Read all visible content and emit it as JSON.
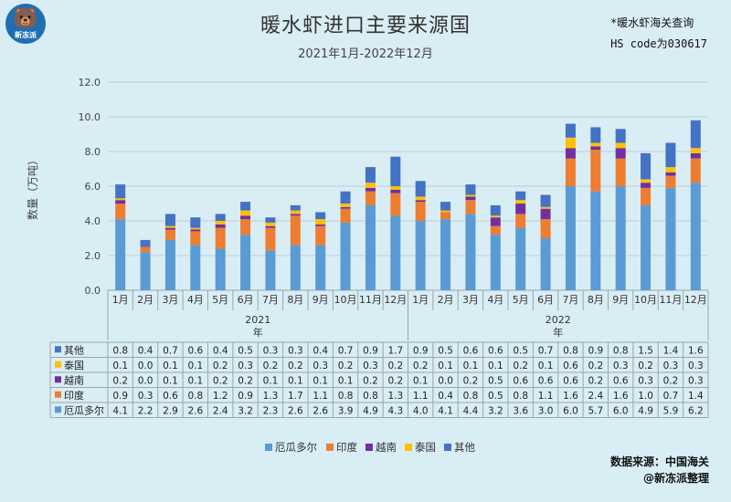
{
  "header": {
    "logo_text": "新冻派",
    "note_line1": "*暖水虾海关查询",
    "note_line2": "HS code为030617"
  },
  "footer": {
    "source": "数据来源：中国海关",
    "org": "@新冻派整理"
  },
  "colors": {
    "厄瓜多尔": "#5b9bd5",
    "印度": "#ed7d31",
    "越南": "#7030a0",
    "泰国": "#ffc000",
    "其他": "#4472c4"
  },
  "chart_data": {
    "type": "bar",
    "stacked": true,
    "title": "暖水虾进口主要来源国",
    "subtitle": "2021年1月-2022年12月",
    "ylabel": "数量（万吨）",
    "ylim": [
      0,
      12
    ],
    "yticks": [
      "0.0",
      "2.0",
      "4.0",
      "6.0",
      "8.0",
      "10.0",
      "12.0"
    ],
    "grid": true,
    "legend": "bottom",
    "groups": [
      {
        "label": "2021\n年",
        "months": [
          "1月",
          "2月",
          "3月",
          "4月",
          "5月",
          "6月",
          "7月",
          "8月",
          "9月",
          "10月",
          "11月",
          "12月"
        ]
      },
      {
        "label": "2022\n年",
        "months": [
          "1月",
          "2月",
          "3月",
          "4月",
          "5月",
          "6月",
          "7月",
          "8月",
          "9月",
          "10月",
          "11月",
          "12月"
        ]
      }
    ],
    "group_labels": [
      "2021",
      "2022"
    ],
    "group_suffix": "年",
    "series": [
      {
        "name": "厄瓜多尔",
        "values": [
          4.1,
          2.2,
          2.9,
          2.6,
          2.4,
          3.2,
          2.3,
          2.6,
          2.6,
          3.9,
          4.9,
          4.3,
          4.0,
          4.1,
          4.4,
          3.2,
          3.6,
          3.0,
          6.0,
          5.7,
          6.0,
          4.9,
          5.9,
          6.2
        ]
      },
      {
        "name": "印度",
        "values": [
          0.9,
          0.3,
          0.6,
          0.8,
          1.2,
          0.9,
          1.3,
          1.7,
          1.1,
          0.8,
          0.8,
          1.3,
          1.1,
          0.4,
          0.8,
          0.5,
          0.8,
          1.1,
          1.6,
          2.4,
          1.6,
          1.0,
          0.7,
          1.4
        ]
      },
      {
        "name": "越南",
        "values": [
          0.2,
          0.0,
          0.1,
          0.1,
          0.2,
          0.2,
          0.1,
          0.1,
          0.1,
          0.1,
          0.2,
          0.2,
          0.1,
          0.0,
          0.2,
          0.5,
          0.6,
          0.6,
          0.6,
          0.2,
          0.6,
          0.3,
          0.2,
          0.3
        ]
      },
      {
        "name": "泰国",
        "values": [
          0.1,
          0.0,
          0.1,
          0.1,
          0.2,
          0.3,
          0.2,
          0.2,
          0.3,
          0.2,
          0.3,
          0.2,
          0.2,
          0.1,
          0.1,
          0.1,
          0.2,
          0.1,
          0.6,
          0.2,
          0.3,
          0.2,
          0.3,
          0.3
        ]
      },
      {
        "name": "其他",
        "values": [
          0.8,
          0.4,
          0.7,
          0.6,
          0.4,
          0.5,
          0.3,
          0.3,
          0.4,
          0.7,
          0.9,
          1.7,
          0.9,
          0.5,
          0.6,
          0.6,
          0.5,
          0.7,
          0.8,
          0.9,
          0.8,
          1.5,
          1.4,
          1.6
        ]
      }
    ],
    "table_order": [
      "其他",
      "泰国",
      "越南",
      "印度",
      "厄瓜多尔"
    ],
    "legend_order": [
      "厄瓜多尔",
      "印度",
      "越南",
      "泰国",
      "其他"
    ]
  }
}
